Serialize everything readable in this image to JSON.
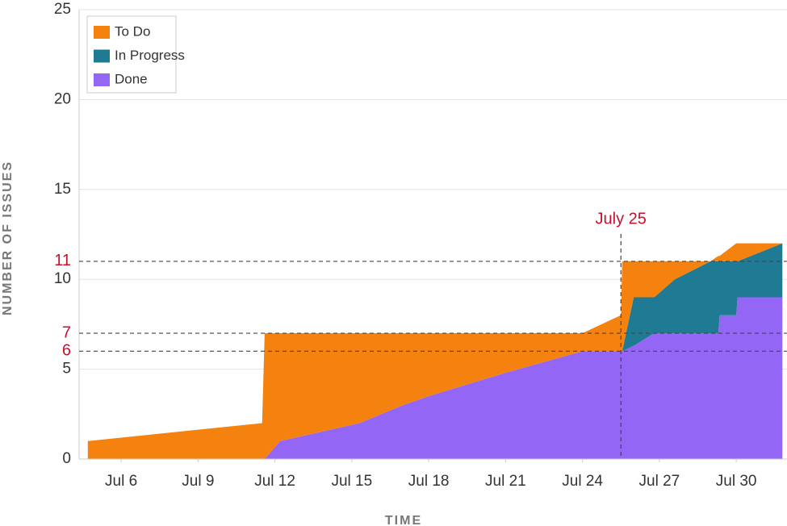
{
  "chart_data": {
    "type": "stacked_area",
    "x_label": "TIME",
    "y_label": "NUMBER OF ISSUES",
    "x": [
      4.7,
      11.5,
      11.6,
      12.2,
      15.3,
      17,
      18,
      21,
      24,
      25.5,
      25.55,
      26,
      26.8,
      27.6,
      29,
      29.3,
      29.35,
      30,
      30.05,
      31.8
    ],
    "series": [
      {
        "name": "To Do",
        "color": "#f5820f",
        "values": [
          1,
          2,
          7,
          6,
          5,
          4,
          3.5,
          2.2,
          1,
          2,
          5,
          2,
          2,
          1,
          0,
          0.3,
          0.3,
          1,
          1,
          0
        ]
      },
      {
        "name": "In Progress",
        "color": "#1f7a94",
        "values": [
          0,
          0,
          0,
          0,
          0,
          0,
          0,
          0,
          0,
          0,
          0,
          2.7,
          2,
          3,
          4,
          4,
          3,
          3,
          2,
          3
        ]
      },
      {
        "name": "Done",
        "color": "#9466f5",
        "values": [
          0,
          0,
          0,
          1,
          2,
          3,
          3.5,
          4.8,
          6,
          6,
          6,
          6.3,
          7,
          7,
          7,
          7,
          8,
          8,
          9,
          9
        ]
      }
    ],
    "xlim": [
      4.36,
      31.98
    ],
    "xticks": [
      {
        "value": 6,
        "label": "Jul 6"
      },
      {
        "value": 9,
        "label": "Jul 9"
      },
      {
        "value": 12,
        "label": "Jul 12"
      },
      {
        "value": 15,
        "label": "Jul 15"
      },
      {
        "value": 18,
        "label": "Jul 18"
      },
      {
        "value": 21,
        "label": "Jul 21"
      },
      {
        "value": 24,
        "label": "Jul 24"
      },
      {
        "value": 27,
        "label": "Jul 27"
      },
      {
        "value": 30,
        "label": "Jul 30"
      }
    ],
    "ylim": [
      0,
      25
    ],
    "yticks": [
      0,
      5,
      10,
      15,
      20,
      25
    ],
    "grid": true,
    "legend": "top-left",
    "annotation_color": "#c8102e",
    "vline": {
      "x": 25.5,
      "label": "July 25"
    },
    "hlines": [
      11,
      7,
      6
    ]
  }
}
